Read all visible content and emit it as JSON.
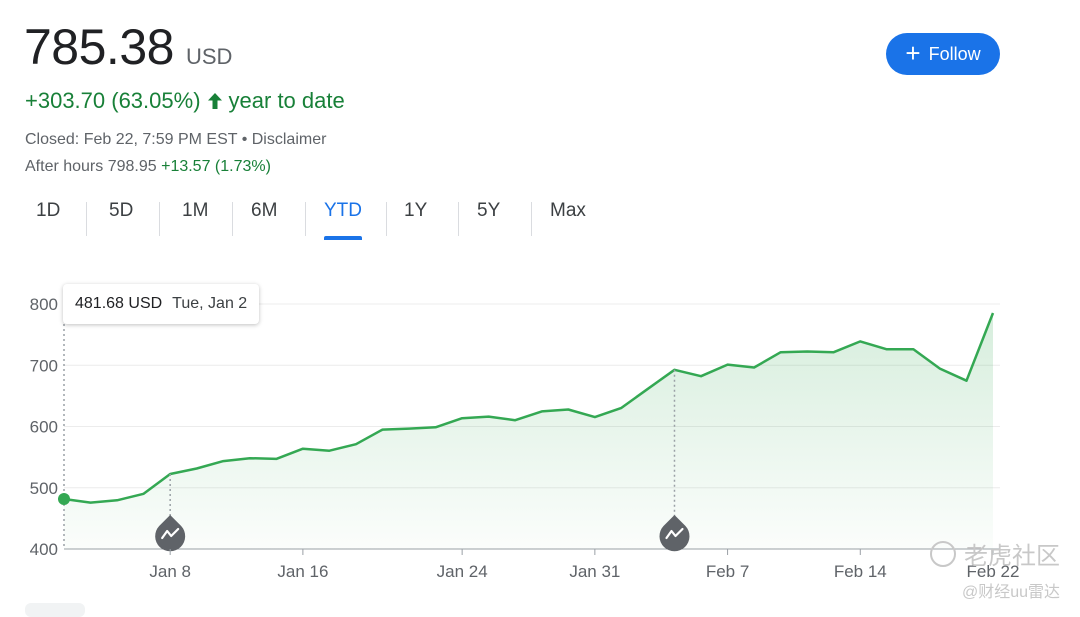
{
  "quote": {
    "price": "785.38",
    "currency": "USD",
    "change": "+303.70 (63.05%)",
    "period": "year to date",
    "closed": "Closed: Feb 22, 7:59 PM EST • Disclaimer",
    "after_hours_label": "After hours 798.95",
    "after_hours_change": "+13.57 (1.73%)"
  },
  "follow_button": {
    "label": "Follow"
  },
  "tabs": [
    "1D",
    "5D",
    "1M",
    "6M",
    "YTD",
    "1Y",
    "5Y",
    "Max"
  ],
  "active_tab": "YTD",
  "tooltip": {
    "value": "481.68 USD",
    "date": "Tue, Jan 2"
  },
  "watermark": {
    "line1": "老虎社区",
    "line2": "@财经uu雷达"
  },
  "colors": {
    "accent": "#1a73e8",
    "up": "#188038",
    "line": "#34a853",
    "fill": "#e6f4ea"
  },
  "chart_data": {
    "type": "line",
    "x": [
      "Jan 2",
      "Jan 3",
      "Jan 4",
      "Jan 5",
      "Jan 8",
      "Jan 9",
      "Jan 10",
      "Jan 11",
      "Jan 12",
      "Jan 16",
      "Jan 17",
      "Jan 18",
      "Jan 19",
      "Jan 22",
      "Jan 23",
      "Jan 24",
      "Jan 25",
      "Jan 26",
      "Jan 29",
      "Jan 30",
      "Jan 31",
      "Feb 1",
      "Feb 2",
      "Feb 5",
      "Feb 6",
      "Feb 7",
      "Feb 8",
      "Feb 9",
      "Feb 12",
      "Feb 13",
      "Feb 14",
      "Feb 15",
      "Feb 16",
      "Feb 20",
      "Feb 21",
      "Feb 22"
    ],
    "values": [
      481.68,
      475.7,
      479.5,
      490.1,
      522.5,
      531.4,
      543.5,
      548.2,
      547.1,
      563.8,
      560.5,
      571.1,
      594.9,
      596.5,
      598.7,
      613.6,
      616.2,
      610.3,
      624.7,
      627.7,
      615.3,
      630.3,
      661.6,
      692.6,
      682.2,
      700.99,
      696.4,
      721.3,
      722.5,
      721.3,
      739.0,
      726.1,
      726.1,
      694.5,
      674.7,
      785.38
    ],
    "x_ticks": [
      "Jan 8",
      "Jan 16",
      "Jan 24",
      "Jan 31",
      "Feb 7",
      "Feb 14",
      "Feb 22"
    ],
    "y_ticks": [
      400,
      500,
      600,
      700,
      800
    ],
    "ylim": [
      400,
      800
    ],
    "event_markers": [
      "Jan 8",
      "Feb 5"
    ],
    "highlight_point": "Jan 2",
    "grid": true,
    "title": "",
    "xlabel": "",
    "ylabel": ""
  }
}
